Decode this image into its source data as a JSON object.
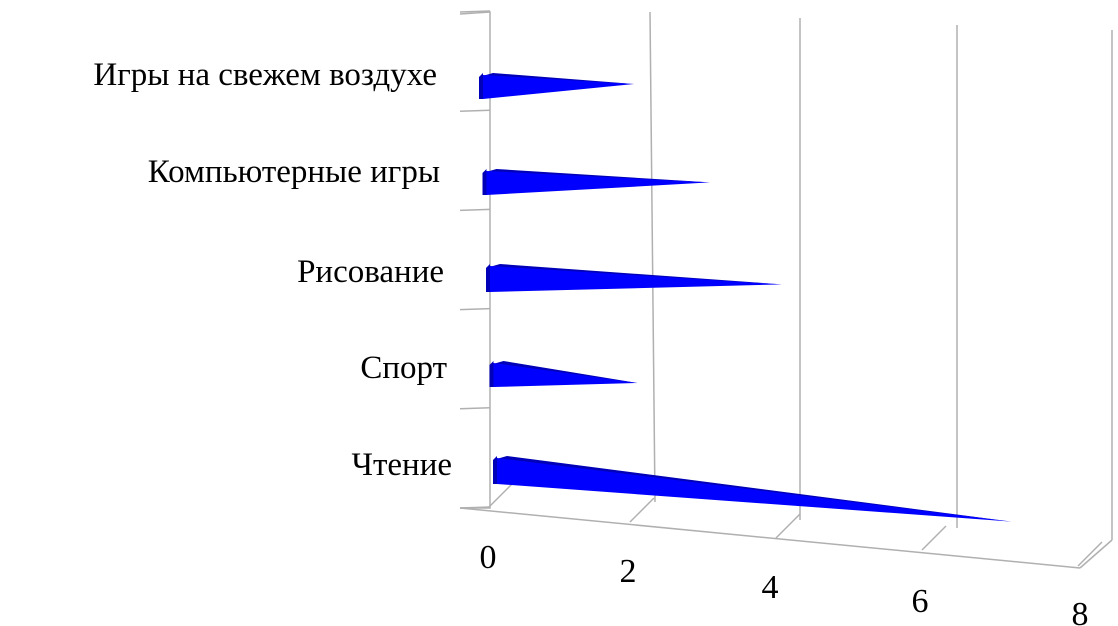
{
  "chart_data": {
    "type": "bar",
    "orientation": "horizontal",
    "style": "3d-cone",
    "categories": [
      "Чтение",
      "Спорт",
      "Рисование",
      "Компьютерные игры",
      "Игры на свежем воздухе"
    ],
    "values": [
      7,
      2,
      4,
      3,
      2
    ],
    "xlim": [
      0,
      8
    ],
    "xticks": [
      "0",
      "2",
      "4",
      "6",
      "8"
    ],
    "grid": true,
    "legend": "none",
    "bar_color": "#0000ff",
    "bar_shadow_color": "#0000b8"
  }
}
